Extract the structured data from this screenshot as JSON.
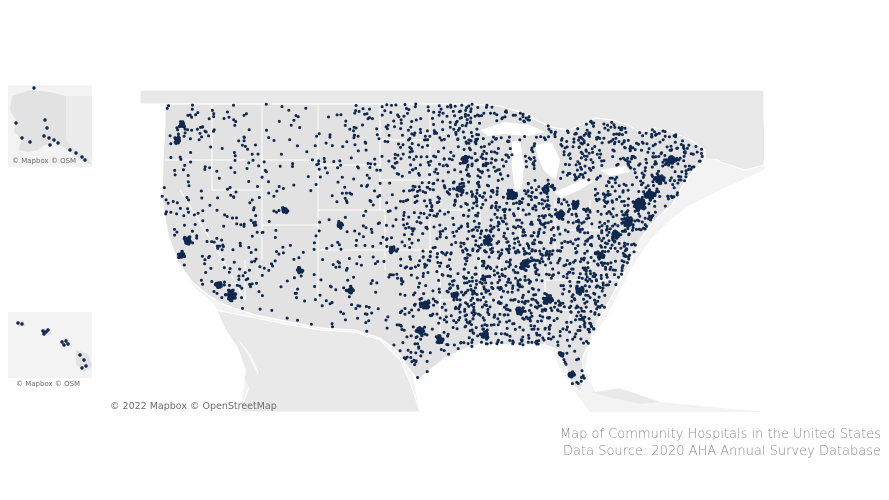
{
  "caption": {
    "title": "Map of Community Hospitals in the United States",
    "source": "Data Source: 2020 AHA Annual Survey Database"
  },
  "attribution": {
    "main": "© 2022 Mapbox  © OpenStreetMap",
    "alaska": "© Mapbox  © OSM",
    "hawaii": "© Mapbox  © OSM"
  },
  "colors": {
    "ocean": "#ffffff",
    "land": "#e8e8e8",
    "foreign_land": "#ececec",
    "state_border": "#ffffff",
    "marker": "#10284e"
  },
  "icons": {
    "hospital_marker": "dot"
  }
}
